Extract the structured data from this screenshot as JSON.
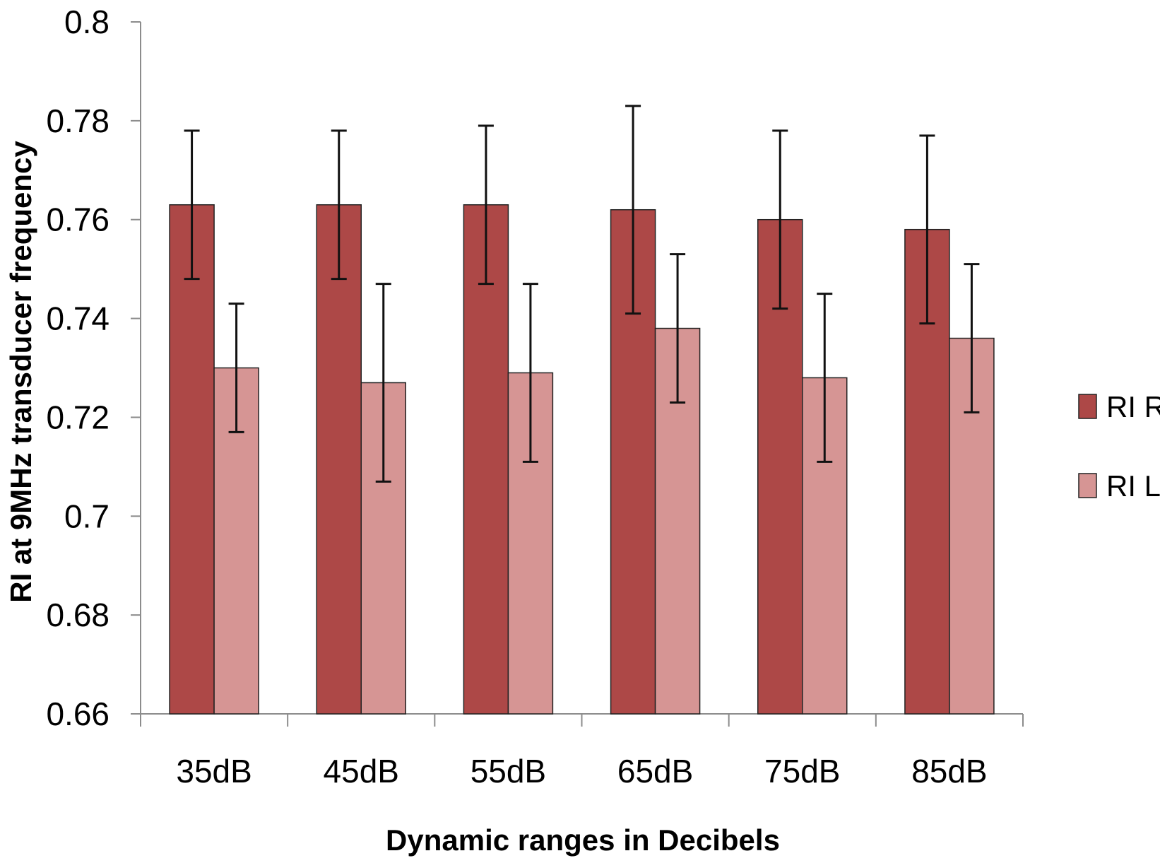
{
  "chart_data": {
    "type": "bar",
    "title": "",
    "xlabel": "Dynamic ranges in Decibels",
    "ylabel": "RI  at 9MHz transducer frequency",
    "ylim": [
      0.66,
      0.8
    ],
    "yticks": [
      "0.66",
      "0.68",
      "0.7",
      "0.72",
      "0.74",
      "0.76",
      "0.78",
      "0.8"
    ],
    "categories": [
      "35dB",
      "45dB",
      "55dB",
      "65dB",
      "75dB",
      "85dB"
    ],
    "series": [
      {
        "name": "RI R",
        "color": "#AD4847",
        "values": [
          0.763,
          0.763,
          0.763,
          0.762,
          0.76,
          0.758
        ],
        "error_low": [
          0.748,
          0.748,
          0.747,
          0.741,
          0.742,
          0.739
        ],
        "error_high": [
          0.778,
          0.778,
          0.779,
          0.783,
          0.778,
          0.777
        ]
      },
      {
        "name": "RI L",
        "color": "#D69594",
        "values": [
          0.73,
          0.727,
          0.729,
          0.738,
          0.728,
          0.736
        ],
        "error_low": [
          0.717,
          0.707,
          0.711,
          0.723,
          0.711,
          0.721
        ],
        "error_high": [
          0.743,
          0.747,
          0.747,
          0.753,
          0.745,
          0.751
        ]
      }
    ],
    "legend": "right",
    "grid": false
  }
}
